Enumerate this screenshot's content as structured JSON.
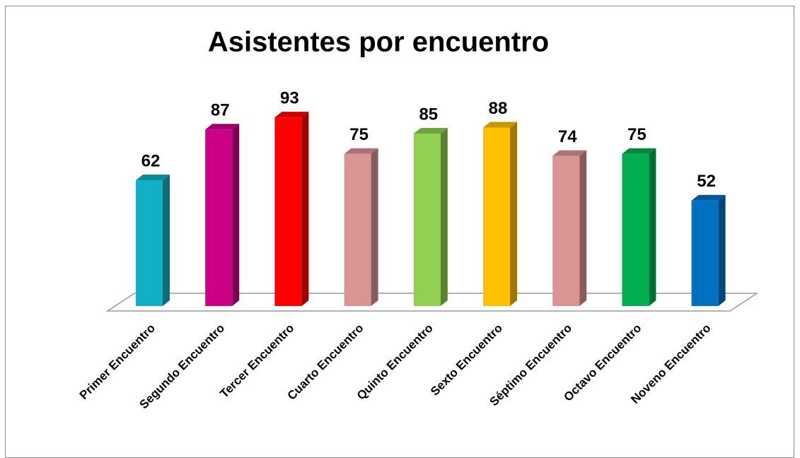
{
  "chart_data": {
    "type": "bar3d",
    "title": "Asistentes por encuentro",
    "categories": [
      "Primer Encuentro",
      "Segundo Encuentro",
      "Tercer Encuentro",
      "Cuarto Encuentro",
      "Quinto Encuentro",
      "Sexto Encuentro",
      "Séptimo Encuentro",
      "Octavo Encuentro",
      "Noveno Encuentro"
    ],
    "values": [
      62,
      87,
      93,
      75,
      85,
      88,
      74,
      75,
      52
    ],
    "colors": [
      "#12b0c4",
      "#cc0085",
      "#ff0000",
      "#d99594",
      "#92d050",
      "#ffc000",
      "#d99594",
      "#00b050",
      "#0070c0"
    ],
    "ylim": [
      0,
      100
    ]
  }
}
